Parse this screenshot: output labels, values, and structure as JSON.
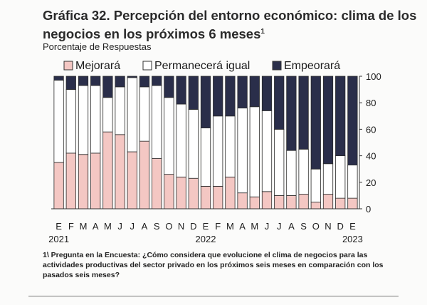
{
  "header": {
    "title": "Gráfica 32. Percepción del entorno económico: clima de los negocios en los próximos 6 meses",
    "title_note_marker": "1",
    "subtitle": "Porcentaje de Respuestas"
  },
  "footnote": "1\\ Pregunta en la Encuesta: ¿Cómo considera que evolucione el clima de negocios para las actividades productivas del sector privado en los próximos seis meses en comparación con los pasados seis meses?",
  "chart_data": {
    "type": "bar",
    "stacked": true,
    "categories": [
      "E",
      "F",
      "M",
      "A",
      "M",
      "J",
      "J",
      "A",
      "S",
      "O",
      "N",
      "D",
      "E",
      "F",
      "M",
      "A",
      "M",
      "J",
      "J",
      "A",
      "S",
      "O",
      "N",
      "D",
      "E"
    ],
    "year_labels": [
      {
        "label": "2021",
        "index": 0
      },
      {
        "label": "2022",
        "index": 12
      },
      {
        "label": "2023",
        "index": 24
      }
    ],
    "series": [
      {
        "name": "Mejorará",
        "color": "#f4c7c3",
        "values": [
          35,
          42,
          41,
          42,
          58,
          56,
          43,
          51,
          38,
          26,
          24,
          23,
          17,
          17,
          24,
          12,
          9,
          13,
          10,
          10,
          11,
          5,
          11,
          8,
          8
        ]
      },
      {
        "name": "Permanecerá igual",
        "color": "#ffffff",
        "values": [
          62,
          48,
          52,
          51,
          26,
          36,
          56,
          41,
          55,
          58,
          55,
          52,
          44,
          53,
          46,
          64,
          68,
          61,
          50,
          34,
          34,
          25,
          23,
          32,
          25
        ]
      },
      {
        "name": "Empeorará",
        "color": "#2a2e4a",
        "values": [
          3,
          10,
          7,
          7,
          16,
          8,
          1,
          8,
          7,
          16,
          21,
          25,
          39,
          30,
          30,
          24,
          23,
          26,
          40,
          56,
          55,
          70,
          66,
          60,
          67
        ]
      }
    ],
    "ylim": [
      0,
      100
    ],
    "yticks": [
      0,
      20,
      40,
      60,
      80,
      100
    ],
    "ylabel_position": "right",
    "legend_position": "top",
    "grid": false
  }
}
